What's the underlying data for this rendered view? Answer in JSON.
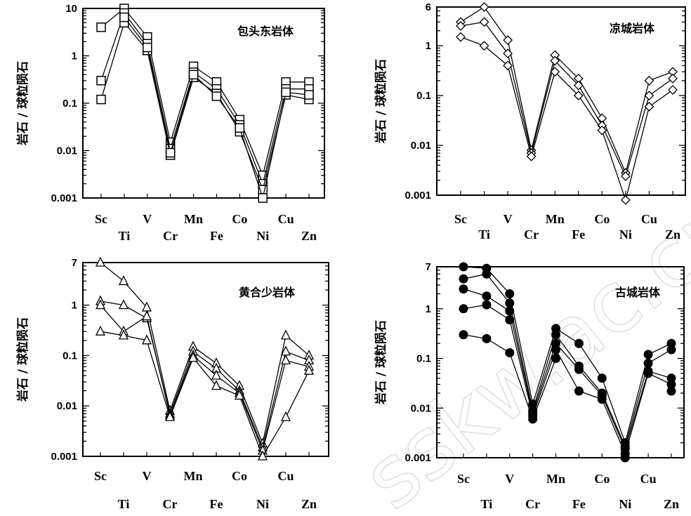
{
  "watermark": "sskw.ac.cn",
  "chart_data": [
    {
      "id": "baotoudong",
      "type": "line",
      "title": "包头东岩体",
      "ylabel": "岩石 / 球粒陨石",
      "yscale": "log",
      "ylim": [
        0.001,
        10
      ],
      "yticks": [
        "10",
        "1",
        "0.1",
        "0.01",
        "0.001"
      ],
      "yticks_values": [
        10,
        1,
        0.1,
        0.01,
        0.001
      ],
      "categories": [
        "Sc",
        "Ti",
        "V",
        "Cr",
        "Mn",
        "Fe",
        "Co",
        "Ni",
        "Cu",
        "Zn"
      ],
      "marker": "square",
      "series": [
        {
          "values": [
            4.0,
            10,
            2.5,
            0.015,
            0.6,
            0.28,
            0.045,
            0.003,
            0.28,
            0.28
          ]
        },
        {
          "values": [
            0.3,
            8,
            1.8,
            0.011,
            0.45,
            0.2,
            0.035,
            0.002,
            0.2,
            0.2
          ]
        },
        {
          "values": [
            0.12,
            5,
            1.3,
            0.008,
            0.35,
            0.16,
            0.025,
            0.0015,
            0.15,
            0.12
          ]
        },
        {
          "values": [
            null,
            6.5,
            1.5,
            0.009,
            0.4,
            0.14,
            0.03,
            0.001,
            0.17,
            0.15
          ]
        }
      ]
    },
    {
      "id": "liangcheng",
      "type": "line",
      "title": "凉城岩体",
      "ylabel": "岩石 / 球粒陨石",
      "yscale": "log",
      "ylim": [
        0.001,
        6
      ],
      "yticks": [
        "6",
        "1",
        "0.1",
        "0.01",
        "0.001"
      ],
      "yticks_values": [
        6,
        1,
        0.1,
        0.01,
        0.001
      ],
      "categories": [
        "Sc",
        "Ti",
        "V",
        "Cr",
        "Mn",
        "Fe",
        "Co",
        "Ni",
        "Cu",
        "Zn"
      ],
      "marker": "diamond",
      "series": [
        {
          "values": [
            3.0,
            6,
            1.3,
            0.008,
            0.65,
            0.22,
            0.035,
            0.0028,
            0.2,
            0.3
          ]
        },
        {
          "values": [
            2.5,
            3,
            0.7,
            0.007,
            0.5,
            0.16,
            0.025,
            0.0024,
            0.1,
            0.22
          ]
        },
        {
          "values": [
            1.5,
            1,
            0.4,
            0.006,
            0.3,
            0.1,
            0.02,
            0.0008,
            0.06,
            0.13
          ]
        }
      ]
    },
    {
      "id": "huanghesha",
      "type": "line",
      "title": "黄合少岩体",
      "ylabel": "岩石 / 球粒陨石",
      "yscale": "log",
      "ylim": [
        0.001,
        7
      ],
      "yticks": [
        "7",
        "1",
        "0.1",
        "0.01",
        "0.001"
      ],
      "yticks_values": [
        7,
        1,
        0.1,
        0.01,
        0.001
      ],
      "categories": [
        "Sc",
        "Ti",
        "V",
        "Cr",
        "Mn",
        "Fe",
        "Co",
        "Ni",
        "Cu",
        "Zn"
      ],
      "marker": "triangle",
      "series": [
        {
          "values": [
            7,
            3,
            0.9,
            0.008,
            0.15,
            0.07,
            0.025,
            0.0018,
            0.25,
            0.1
          ]
        },
        {
          "values": [
            1.2,
            1,
            0.55,
            0.007,
            0.12,
            0.055,
            0.02,
            0.0015,
            0.12,
            0.08
          ]
        },
        {
          "values": [
            1.0,
            0.3,
            0.6,
            0.0065,
            0.1,
            0.04,
            0.018,
            0.0013,
            0.08,
            0.06
          ]
        },
        {
          "values": [
            0.3,
            0.25,
            0.2,
            0.006,
            0.09,
            0.025,
            0.016,
            0.001,
            0.006,
            0.05
          ]
        }
      ]
    },
    {
      "id": "gucheng",
      "type": "line",
      "title": "古城岩体",
      "ylabel": "岩石 / 球粒陨石",
      "yscale": "log",
      "ylim": [
        0.001,
        7
      ],
      "yticks": [
        "7",
        "1",
        "0.1",
        "0.01",
        "0.001"
      ],
      "yticks_values": [
        7,
        1,
        0.1,
        0.01,
        0.001
      ],
      "categories": [
        "Sc",
        "Ti",
        "V",
        "Cr",
        "Mn",
        "Fe",
        "Co",
        "Ni",
        "Cu",
        "Zn"
      ],
      "marker": "filled-circle",
      "series": [
        {
          "values": [
            7,
            6.5,
            2,
            0.012,
            0.4,
            0.2,
            0.04,
            0.002,
            0.12,
            0.2
          ]
        },
        {
          "values": [
            4,
            5,
            1.3,
            0.009,
            0.3,
            0.07,
            0.02,
            0.0017,
            0.08,
            0.15
          ]
        },
        {
          "values": [
            2.5,
            1.8,
            0.9,
            0.008,
            0.2,
            0.06,
            0.018,
            0.0015,
            0.055,
            0.04
          ]
        },
        {
          "values": [
            1.0,
            1.2,
            0.6,
            0.007,
            0.15,
            0.022,
            0.015,
            0.0012,
            0.05,
            0.03
          ]
        },
        {
          "values": [
            0.3,
            0.25,
            0.13,
            0.006,
            0.1,
            null,
            null,
            0.001,
            null,
            0.022
          ]
        }
      ]
    }
  ]
}
